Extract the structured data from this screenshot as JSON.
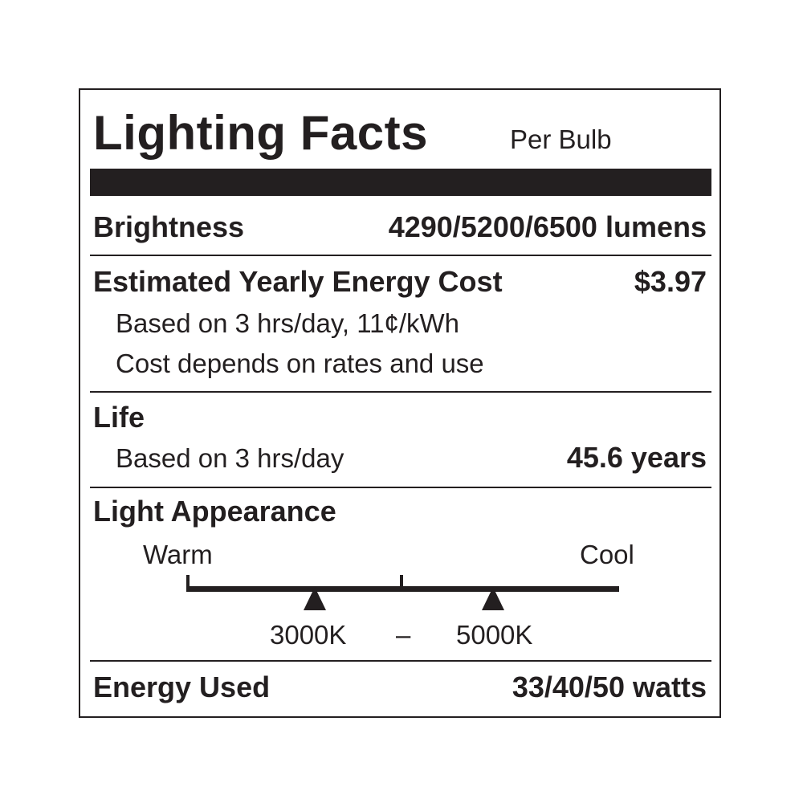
{
  "title": "Lighting Facts",
  "subtitle": "Per Bulb",
  "brightness": {
    "label": "Brightness",
    "value": "4290/5200/6500 lumens"
  },
  "energy_cost": {
    "label": "Estimated Yearly Energy Cost",
    "value": "$3.97",
    "note_1": "Based on 3 hrs/day, 11¢/kWh",
    "note_2": "Cost depends on rates and use"
  },
  "life": {
    "label": "Life",
    "note": "Based on 3 hrs/day",
    "value": "45.6 years"
  },
  "light_appearance": {
    "label": "Light Appearance",
    "warm_label": "Warm",
    "cool_label": "Cool",
    "min_marker": "3000K",
    "dash": "–",
    "max_marker": "5000K"
  },
  "energy_used": {
    "label": "Energy Used",
    "value": "33/40/50 watts"
  },
  "colors": {
    "ink": "#231f20",
    "background": "#ffffff"
  }
}
